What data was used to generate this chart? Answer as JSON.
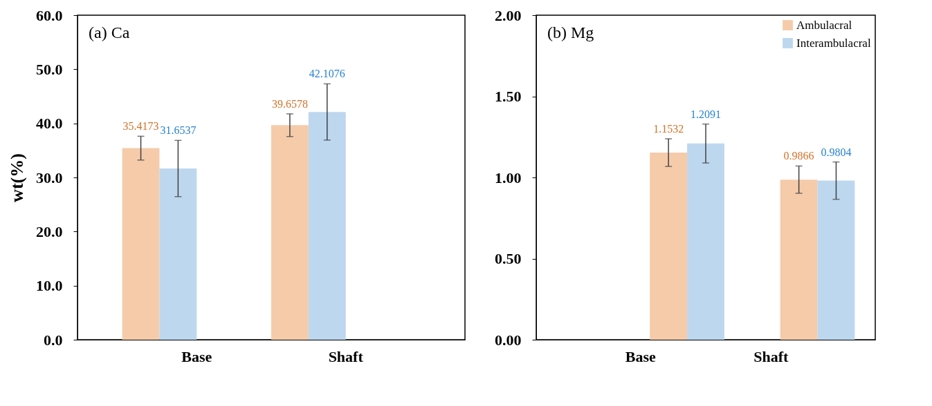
{
  "chart_data": [
    {
      "type": "bar",
      "title": "(a) Ca",
      "ylabel": "wt(%)",
      "categories": [
        "Base",
        "Shaft"
      ],
      "series": [
        {
          "color": "#f5cbaa",
          "values": [
            35.4173,
            39.6578
          ],
          "errors": [
            2.2,
            2.1
          ]
        },
        {
          "color": "#bdd7ee",
          "values": [
            31.6537,
            42.1076
          ],
          "errors": [
            5.2,
            5.2
          ]
        }
      ],
      "ylim": [
        0,
        60
      ],
      "yticks": [
        {
          "value": 0,
          "label": "0.0"
        },
        {
          "value": 10,
          "label": "10.0"
        },
        {
          "value": 20,
          "label": "20.0"
        },
        {
          "value": 30,
          "label": "30.0"
        },
        {
          "value": 40,
          "label": "40.0"
        },
        {
          "value": 50,
          "label": "50.0"
        },
        {
          "value": 60,
          "label": "60.0"
        }
      ],
      "data_labels": true,
      "grid": false,
      "legend": false
    },
    {
      "type": "bar",
      "title": "(b) Mg",
      "categories": [
        "Base",
        "Shaft"
      ],
      "series": [
        {
          "name": "Ambulacral",
          "color": "#f5cbaa",
          "values": [
            1.1532,
            0.9866
          ],
          "errors": [
            0.085,
            0.084
          ]
        },
        {
          "name": "Interambulacral",
          "color": "#bdd7ee",
          "values": [
            1.2091,
            0.9804
          ],
          "errors": [
            0.12,
            0.115
          ]
        }
      ],
      "ylim": [
        0,
        2
      ],
      "yticks": [
        {
          "value": 0,
          "label": "0.00"
        },
        {
          "value": 0.5,
          "label": "0.50"
        },
        {
          "value": 1,
          "label": "1.00"
        },
        {
          "value": 1.5,
          "label": "1.50"
        },
        {
          "value": 2,
          "label": "2.00"
        }
      ],
      "data_labels": true,
      "grid": false,
      "legend": "top right"
    }
  ]
}
